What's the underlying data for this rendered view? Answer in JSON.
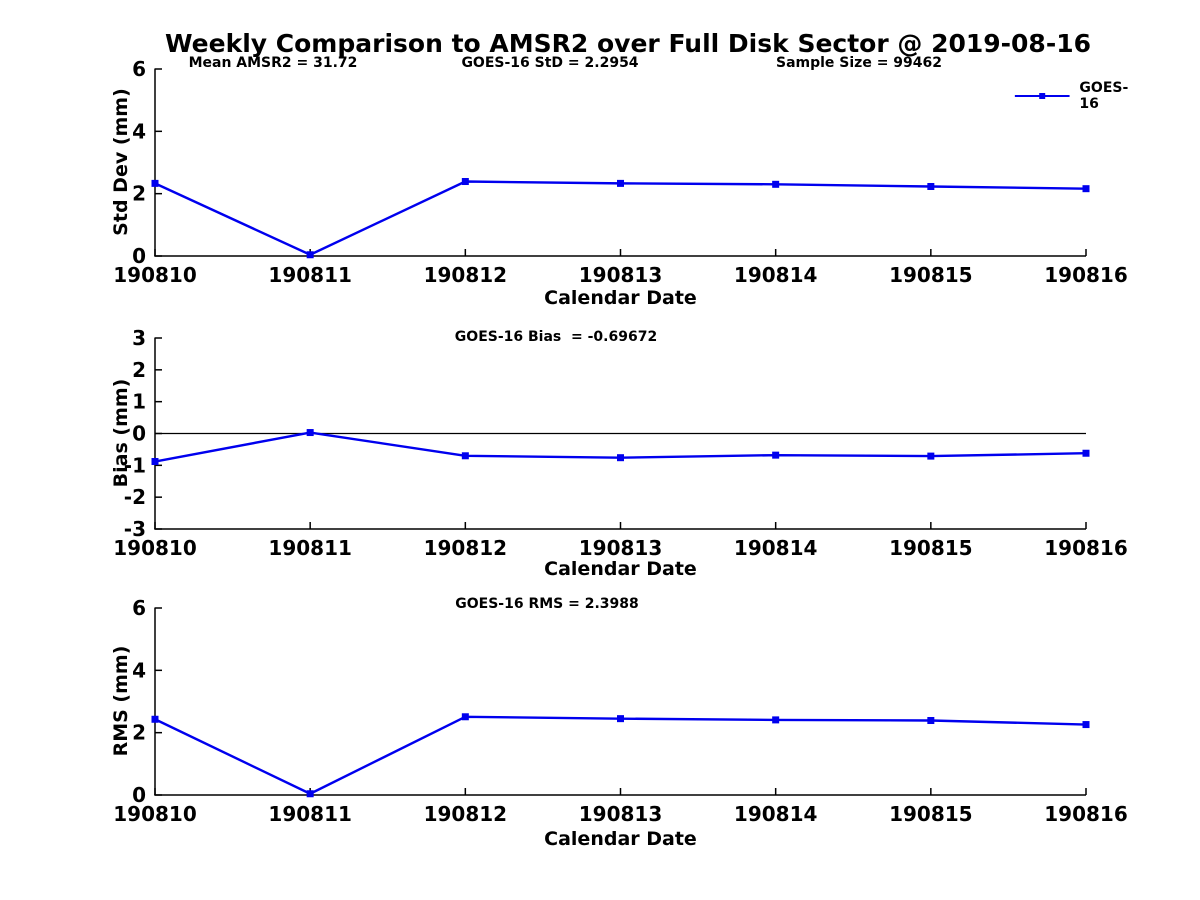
{
  "title": "Weekly Comparison to AMSR2 over Full Disk Sector @ 2019-08-16",
  "legend": {
    "label": "GOES-16"
  },
  "colors": {
    "series": "#0000EE",
    "axis": "#000000",
    "background": "#FFFFFF"
  },
  "stats": {
    "mean_amsr2": 31.72,
    "goes16_std": 2.2954,
    "sample_size": 99462,
    "goes16_bias": -0.69672,
    "goes16_rms": 2.3988
  },
  "chart_data": [
    {
      "type": "line",
      "panel": "std_dev",
      "ylabel": "Std Dev (mm)",
      "xlabel": "Calendar Date",
      "categories": [
        "190810",
        "190811",
        "190812",
        "190813",
        "190814",
        "190815",
        "190816"
      ],
      "series": [
        {
          "name": "GOES-16",
          "color": "#0000EE",
          "marker": "square",
          "values": [
            2.33,
            0.04,
            2.39,
            2.33,
            2.3,
            2.23,
            2.16
          ]
        }
      ],
      "ylim": [
        0,
        6
      ],
      "yticks": [
        0,
        2,
        4,
        6
      ],
      "grid": false,
      "legend_position": "northeast",
      "annotations": [
        "Mean AMSR2 = 31.72",
        "GOES-16 StD = 2.2954",
        "Sample Size = 99462"
      ]
    },
    {
      "type": "line",
      "panel": "bias",
      "ylabel": "Bias (mm)",
      "xlabel": "Calendar Date",
      "categories": [
        "190810",
        "190811",
        "190812",
        "190813",
        "190814",
        "190815",
        "190816"
      ],
      "series": [
        {
          "name": "GOES-16",
          "color": "#0000EE",
          "marker": "square",
          "values": [
            -0.88,
            0.03,
            -0.7,
            -0.76,
            -0.68,
            -0.71,
            -0.62
          ]
        }
      ],
      "ylim": [
        -3,
        3
      ],
      "yticks": [
        -3,
        -2,
        -1,
        0,
        1,
        2,
        3
      ],
      "grid": false,
      "zero_line": true,
      "annotations": [
        "GOES-16 Bias  = -0.69672"
      ]
    },
    {
      "type": "line",
      "panel": "rms",
      "ylabel": "RMS (mm)",
      "xlabel": "Calendar Date",
      "categories": [
        "190810",
        "190811",
        "190812",
        "190813",
        "190814",
        "190815",
        "190816"
      ],
      "series": [
        {
          "name": "GOES-16",
          "color": "#0000EE",
          "marker": "square",
          "values": [
            2.43,
            0.04,
            2.51,
            2.45,
            2.41,
            2.39,
            2.26
          ]
        }
      ],
      "ylim": [
        0,
        6
      ],
      "yticks": [
        0,
        2,
        4,
        6
      ],
      "grid": false,
      "annotations": [
        "GOES-16 RMS = 2.3988"
      ]
    }
  ]
}
